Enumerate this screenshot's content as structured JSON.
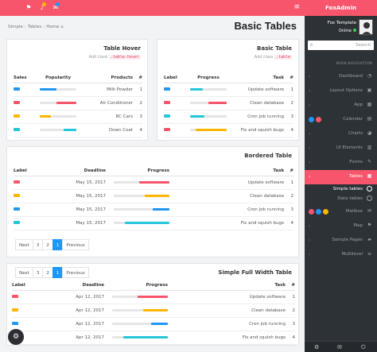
{
  "app": {
    "brand": "FoxAdmin",
    "page_title": "Basic Tables"
  },
  "breadcrumb": [
    "Simple",
    "Tables",
    "Home"
  ],
  "colors": {
    "accent": "#f7556b",
    "sidebar": "#2d3237",
    "pagination_active": "#2196f3"
  },
  "topbar": {
    "icons": [
      "flag-icon",
      "bell-icon",
      "mail-icon",
      "menu-icon"
    ]
  },
  "card_hover": {
    "title": "Table Hover",
    "add_class_text": "Add class",
    "add_class_code": ".table-hover",
    "headers": [
      "Sales",
      "Popularity",
      "Products",
      "#"
    ],
    "rows": [
      {
        "sales_color": "#2196f3",
        "bar_color": "#2196f3",
        "bar_value": 0.45,
        "product": "Milk Powder",
        "num": "1"
      },
      {
        "sales_color": "#f7556b",
        "bar_color": "#f7556b",
        "bar_value": 0.55,
        "product": "Air Conditioner",
        "num": "2"
      },
      {
        "sales_color": "#ffb400",
        "bar_color": "#ffb400",
        "bar_value": 0.3,
        "product": "RC Cars",
        "num": "3"
      },
      {
        "sales_color": "#26c6da",
        "bar_color": "#26c6da",
        "bar_value": 0.35,
        "product": "Down Coat",
        "num": "4"
      }
    ]
  },
  "card_basic": {
    "title": "Basic Table",
    "add_class_text": "Add class",
    "add_class_code": ".table",
    "headers": [
      "Label",
      "Progress",
      "Task",
      "#"
    ],
    "rows": [
      {
        "label_color": "#2196f3",
        "bar_color": "#26c6da",
        "bar_value": 0.35,
        "task": "Update software",
        "num": "1"
      },
      {
        "label_color": "#f7556b",
        "bar_color": "#f7556b",
        "bar_value": 0.5,
        "task": "Clean database",
        "num": "2"
      },
      {
        "label_color": "#26c6da",
        "bar_color": "#26c6da",
        "bar_value": 0.4,
        "task": "Cron job running",
        "num": "3"
      },
      {
        "label_color": "#f7556b",
        "bar_color": "#ffb400",
        "bar_value": 0.85,
        "task": "Fix and squish bugs",
        "num": "4"
      }
    ]
  },
  "card_bordered": {
    "title": "Bordered Table",
    "headers": [
      "Label",
      "Deadline",
      "Progress",
      "Task",
      "#"
    ],
    "rows": [
      {
        "label_color": "#f7556b",
        "deadline": "May 15, 2017",
        "bar_color": "#f7556b",
        "bar_value": 0.55,
        "task": "Update software",
        "num": "1"
      },
      {
        "label_color": "#ffb400",
        "deadline": "May 15, 2017",
        "bar_color": "#ffb400",
        "bar_value": 0.45,
        "task": "Clean database",
        "num": "2"
      },
      {
        "label_color": "#2196f3",
        "deadline": "May 15, 2017",
        "bar_color": "#2196f3",
        "bar_value": 0.3,
        "task": "Cron job running",
        "num": "3"
      },
      {
        "label_color": "#26c6da",
        "deadline": "May 15, 2017",
        "bar_color": "#26c6da",
        "bar_value": 0.8,
        "task": "Fix and squish bugs",
        "num": "4"
      }
    ],
    "pager": [
      "Next",
      "3",
      "2",
      "1",
      "Previous"
    ],
    "pager_active": "1"
  },
  "card_full": {
    "title": "Simple Full Width Table",
    "pager": [
      "Next",
      "3",
      "2",
      "1",
      "Previous"
    ],
    "pager_active": "1",
    "headers": [
      "Label",
      "Deadline",
      "Progress",
      "Task",
      "#"
    ],
    "rows": [
      {
        "label_color": "#f7556b",
        "deadline": "Apr 12, 2017",
        "bar_color": "#f7556b",
        "bar_value": 0.55,
        "task": "Update software",
        "num": "1"
      },
      {
        "label_color": "#ffb400",
        "deadline": "Apr 12, 2017",
        "bar_color": "#ffb400",
        "bar_value": 0.45,
        "task": "Clean database",
        "num": "2"
      },
      {
        "label_color": "#2196f3",
        "deadline": "Apr 12, 2017",
        "bar_color": "#2196f3",
        "bar_value": 0.3,
        "task": "Cron job running",
        "num": "3"
      },
      {
        "label_color": "#26c6da",
        "deadline": "Apr 12, 2017",
        "bar_color": "#26c6da",
        "bar_value": 0.8,
        "task": "Fix and squish bugs",
        "num": "4"
      }
    ]
  },
  "sidebar": {
    "profile_name": "Fox Template",
    "profile_status": "Online",
    "search_placeholder": "Search",
    "nav_heading": "MAIN NAVIGATION",
    "items": [
      {
        "label": "Dashboard",
        "icon": "dashboard-icon",
        "glyph": "◔"
      },
      {
        "label": "Layout Options",
        "icon": "layout-icon",
        "glyph": "▣"
      },
      {
        "label": "App",
        "icon": "app-icon",
        "glyph": "▦"
      },
      {
        "label": "Calendar",
        "icon": "calendar-icon",
        "glyph": "▤"
      },
      {
        "label": "Charts",
        "icon": "charts-icon",
        "glyph": "◕"
      },
      {
        "label": "UI Elements",
        "icon": "ui-elements-icon",
        "glyph": "▥"
      },
      {
        "label": "Forms",
        "icon": "forms-icon",
        "glyph": "✎"
      },
      {
        "label": "Tables",
        "icon": "tables-icon",
        "glyph": "▦"
      },
      {
        "label": "Mailbox",
        "icon": "mailbox-icon",
        "glyph": "✉"
      },
      {
        "label": "Map",
        "icon": "map-icon",
        "glyph": "⚑"
      },
      {
        "label": "Sample Pages",
        "icon": "sample-pages-icon",
        "glyph": "▰"
      },
      {
        "label": "Multilevel",
        "icon": "multilevel-icon",
        "glyph": "≡"
      }
    ],
    "sub_items": [
      "Simple tables",
      "Data tables"
    ],
    "calendar_badges": [
      "#2196f3",
      "#f7556b"
    ],
    "mailbox_badges": [
      "#f7556b",
      "#2196f3",
      "#ffb400"
    ],
    "footer_icons": [
      "settings-icon",
      "mail-icon",
      "power-icon"
    ]
  }
}
